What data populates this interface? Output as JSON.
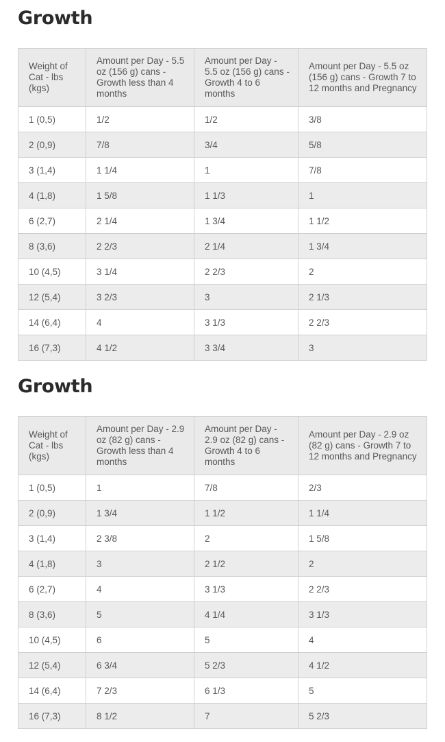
{
  "sections": [
    {
      "title": "Growth",
      "headers": [
        "Weight of Cat - lbs (kgs)",
        "Amount per Day - 5.5 oz (156 g) cans - Growth less than 4 months",
        "Amount per Day - 5.5 oz (156 g) cans - Growth 4 to 6 months",
        "Amount per Day - 5.5 oz (156 g) cans - Growth 7 to 12 months and Pregnancy"
      ],
      "rows": [
        [
          "1 (0,5)",
          "1/2",
          "1/2",
          "3/8"
        ],
        [
          "2 (0,9)",
          "7/8",
          "3/4",
          "5/8"
        ],
        [
          "3 (1,4)",
          "1 1/4",
          "1",
          "7/8"
        ],
        [
          "4 (1,8)",
          "1 5/8",
          "1 1/3",
          "1"
        ],
        [
          "6 (2,7)",
          "2 1/4",
          "1 3/4",
          "1 1/2"
        ],
        [
          "8 (3,6)",
          "2 2/3",
          "2 1/4",
          "1 3/4"
        ],
        [
          "10 (4,5)",
          "3 1/4",
          "2 2/3",
          "2"
        ],
        [
          "12 (5,4)",
          "3 2/3",
          "3",
          "2 1/3"
        ],
        [
          "14 (6,4)",
          "4",
          "3 1/3",
          "2 2/3"
        ],
        [
          "16 (7,3)",
          "4 1/2",
          "3 3/4",
          "3"
        ]
      ]
    },
    {
      "title": "Growth",
      "headers": [
        "Weight of Cat - lbs (kgs)",
        "Amount per Day - 2.9 oz (82 g) cans - Growth less than 4 months",
        "Amount per Day - 2.9 oz (82 g) cans - Growth 4 to 6 months",
        "Amount per Day - 2.9 oz (82 g) cans - Growth 7 to 12 months and Pregnancy"
      ],
      "rows": [
        [
          "1 (0,5)",
          "1",
          "7/8",
          "2/3"
        ],
        [
          "2 (0,9)",
          "1 3/4",
          "1 1/2",
          "1 1/4"
        ],
        [
          "3 (1,4)",
          "2 3/8",
          "2",
          "1 5/8"
        ],
        [
          "4 (1,8)",
          "3",
          "2 1/2",
          "2"
        ],
        [
          "6 (2,7)",
          "4",
          "3 1/3",
          "2 2/3"
        ],
        [
          "8 (3,6)",
          "5",
          "4 1/4",
          "3 1/3"
        ],
        [
          "10 (4,5)",
          "6",
          "5",
          "4"
        ],
        [
          "12 (5,4)",
          "6 3/4",
          "5 2/3",
          "4 1/2"
        ],
        [
          "14 (6,4)",
          "7 2/3",
          "6 1/3",
          "5"
        ],
        [
          "16 (7,3)",
          "8 1/2",
          "7",
          "5 2/3"
        ]
      ]
    }
  ]
}
